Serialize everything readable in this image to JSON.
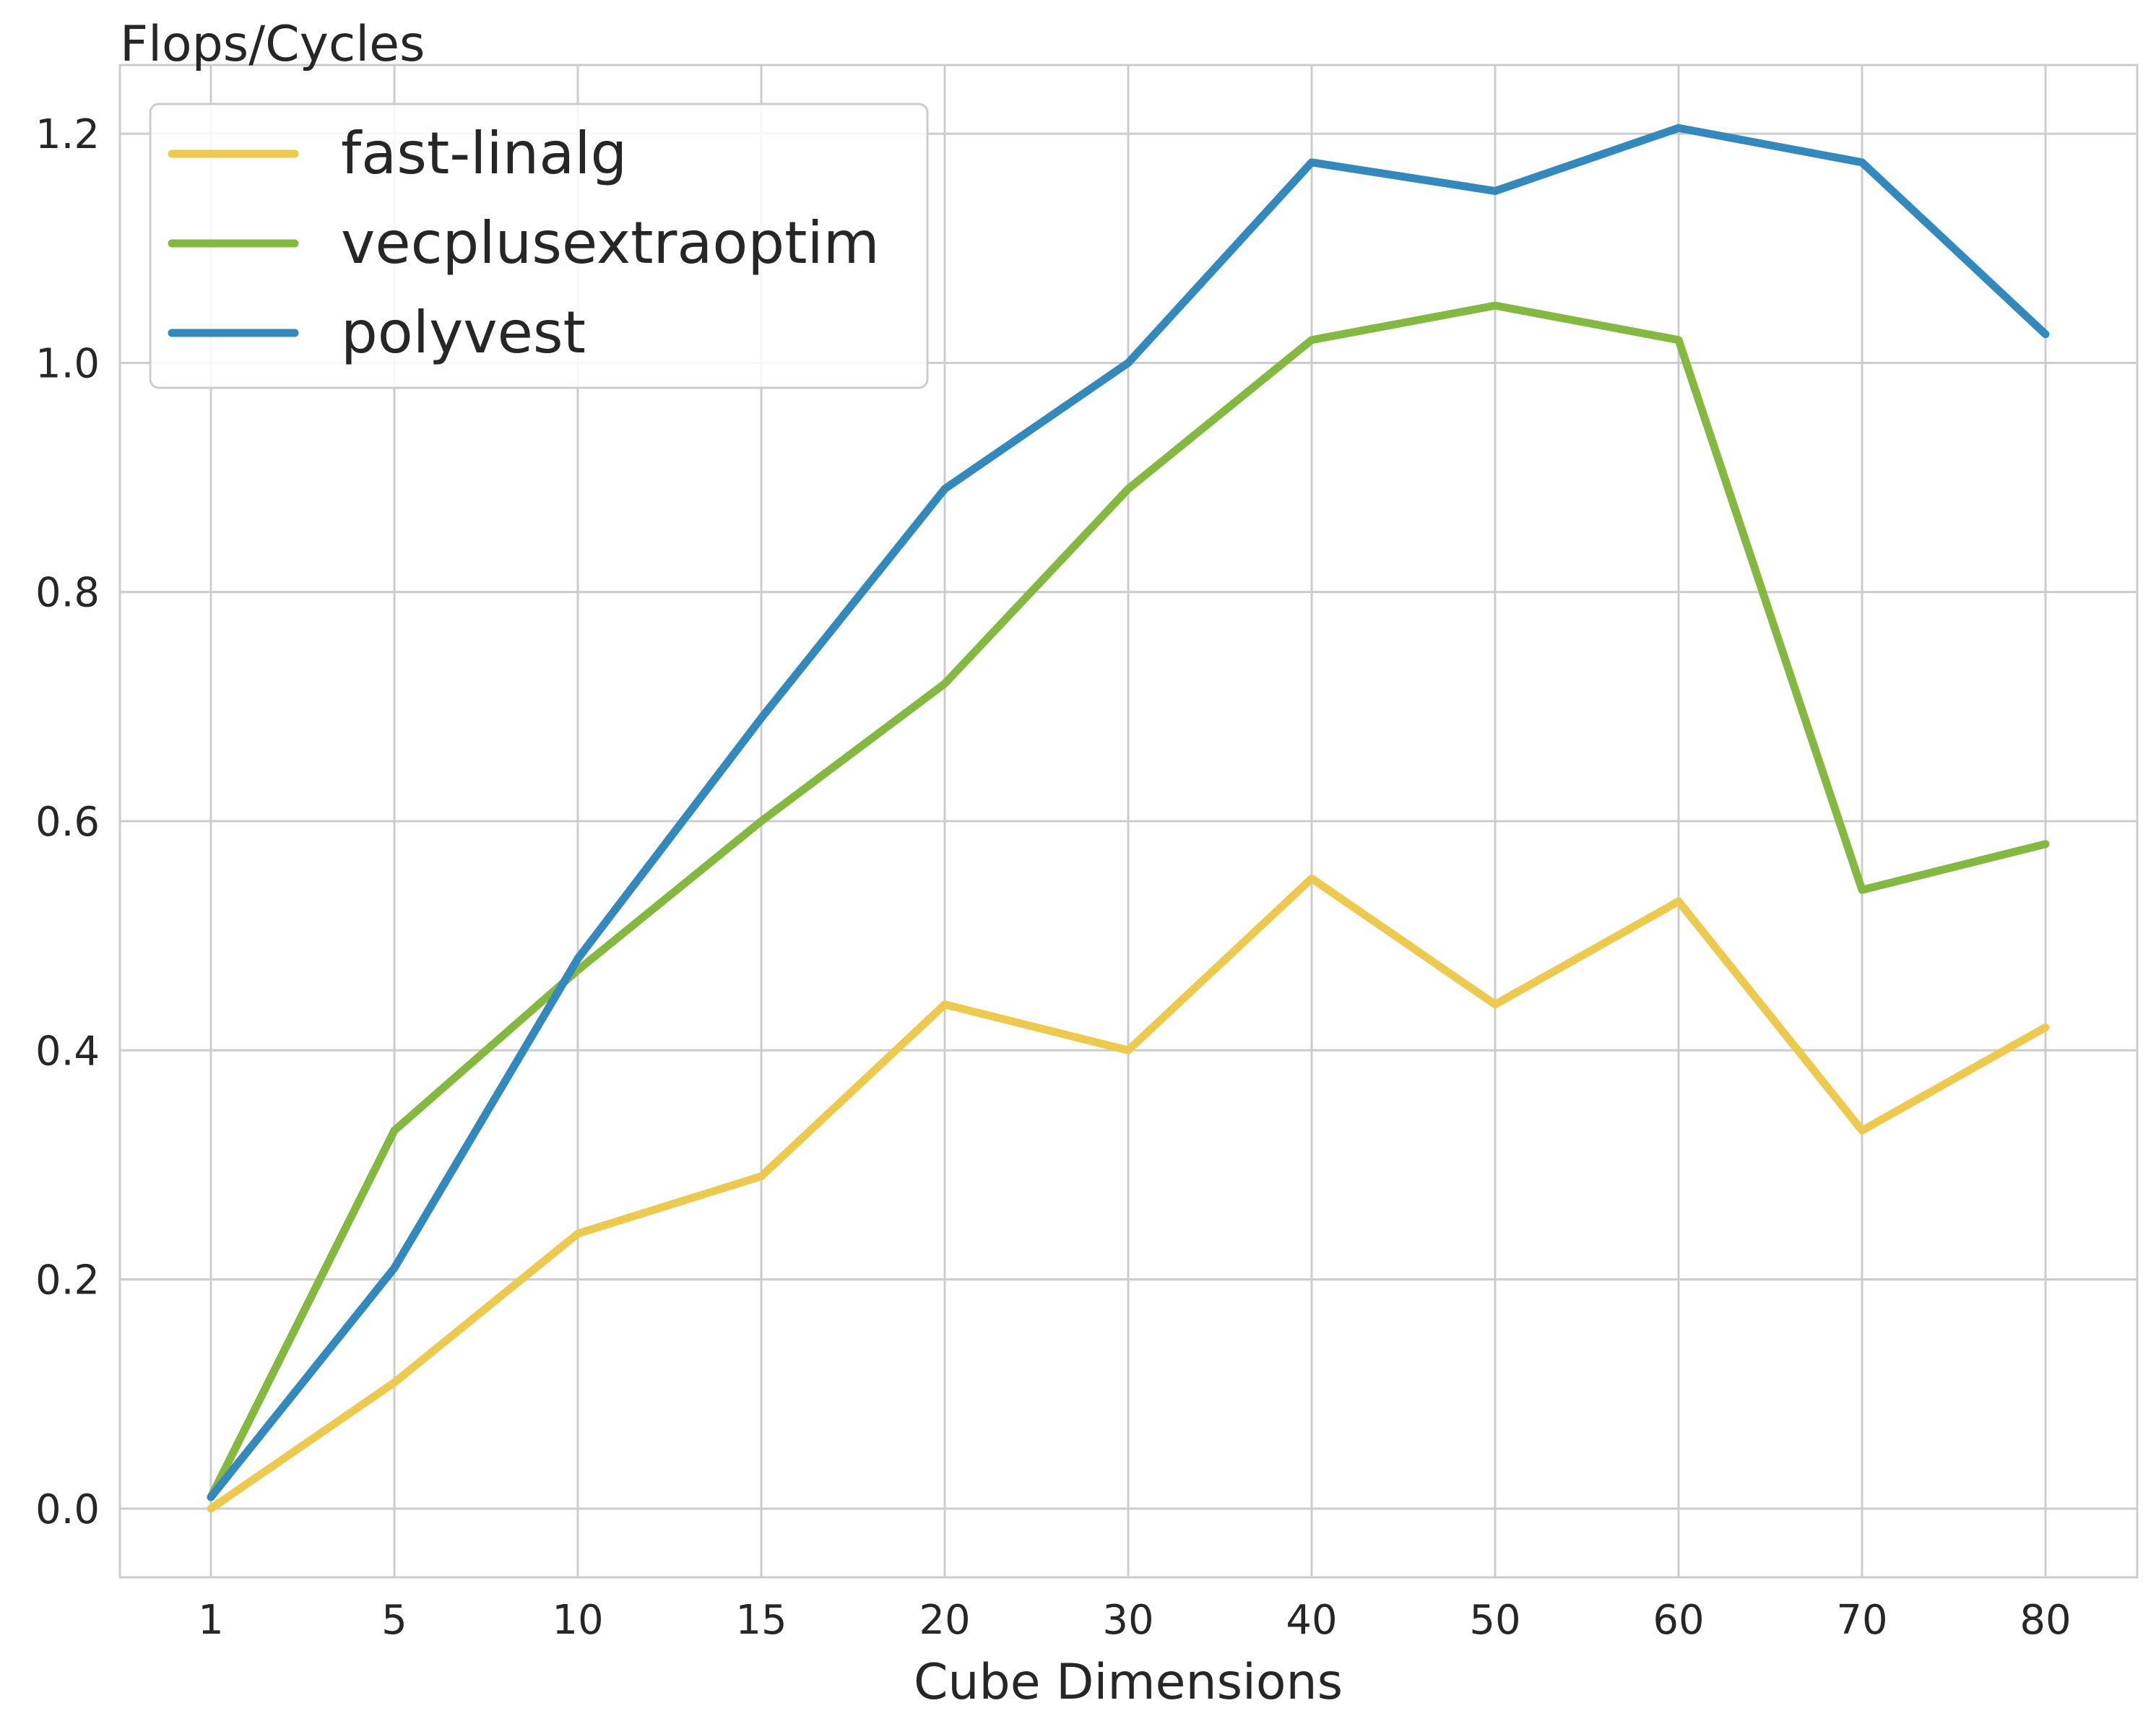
{
  "chart_data": {
    "type": "line",
    "title": "",
    "xlabel": "Cube Dimensions",
    "ylabel": "Flops/Cycles",
    "x": [
      "1",
      "5",
      "10",
      "15",
      "20",
      "30",
      "40",
      "50",
      "60",
      "70",
      "80"
    ],
    "ylim": [
      -0.06,
      1.26
    ],
    "yticks": [
      "0.0",
      "0.2",
      "0.4",
      "0.6",
      "0.8",
      "1.0",
      "1.2"
    ],
    "grid": true,
    "legend_position": "top-left",
    "series": [
      {
        "name": "fast-linalg",
        "color": "#ECC94F",
        "values": [
          0.0,
          0.11,
          0.24,
          0.29,
          0.44,
          0.4,
          0.55,
          0.44,
          0.53,
          0.33,
          0.42
        ]
      },
      {
        "name": "vecplusextraoptim",
        "color": "#85B840",
        "values": [
          0.01,
          0.33,
          0.47,
          0.6,
          0.72,
          0.89,
          1.02,
          1.05,
          1.02,
          0.54,
          0.58
        ]
      },
      {
        "name": "polyvest",
        "color": "#3389BC",
        "values": [
          0.01,
          0.21,
          0.48,
          0.69,
          0.89,
          1.0,
          1.175,
          1.15,
          1.205,
          1.175,
          1.025
        ]
      }
    ]
  }
}
